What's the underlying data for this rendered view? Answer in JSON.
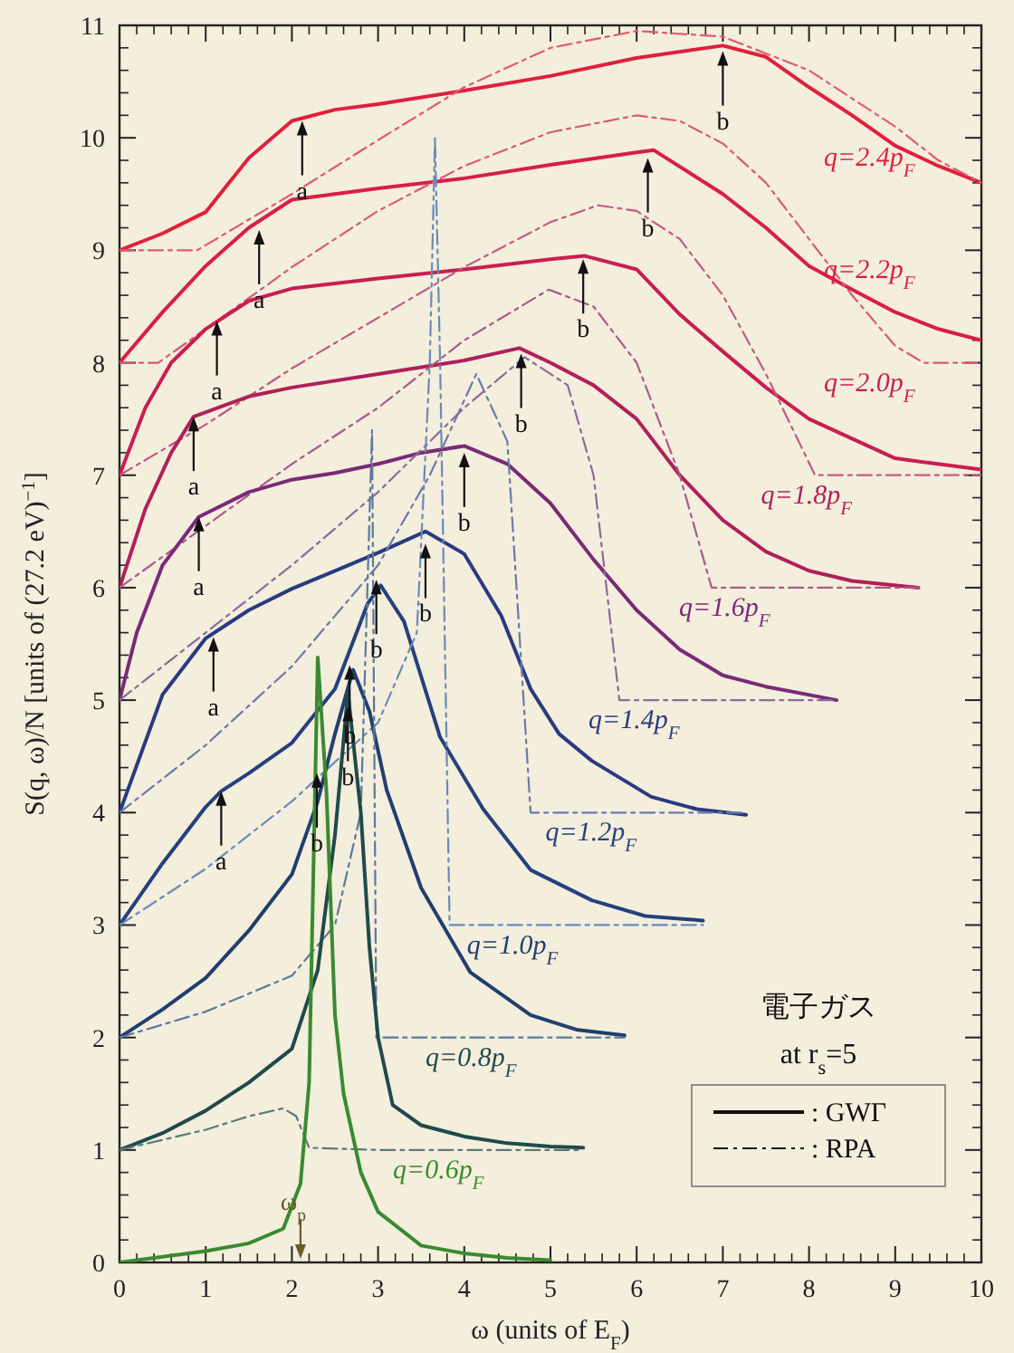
{
  "chart_data": {
    "type": "line",
    "xlabel": "ω (units of E$_{F}$)",
    "ylabel": "S(q, ω)/N   [units of (27.2 eV)$^{−1}$]",
    "xlim": [
      0,
      10
    ],
    "ylim": [
      0,
      11
    ],
    "xticks": [
      0,
      1,
      2,
      3,
      4,
      5,
      6,
      7,
      8,
      9,
      10
    ],
    "yticks": [
      0,
      1,
      2,
      3,
      4,
      5,
      6,
      7,
      8,
      9,
      10,
      11
    ],
    "legend": "bottom right",
    "series": [
      {
        "name": "q=2.4p$_{F}$",
        "color": "#e0203c",
        "line_style": "solid",
        "x": [
          0,
          0.5,
          1,
          1.5,
          2,
          2.5,
          3,
          4,
          5,
          6,
          7,
          7.5,
          8,
          8.5,
          9,
          9.5,
          10
        ],
        "values": [
          9.0,
          9.15,
          9.34,
          9.82,
          10.15,
          10.25,
          10.3,
          10.42,
          10.55,
          10.71,
          10.82,
          10.72,
          10.45,
          10.2,
          9.93,
          9.75,
          9.6
        ]
      },
      {
        "color": "#e05a70",
        "line_style": "dashed",
        "x": [
          0,
          0.9,
          2,
          3,
          4,
          5,
          6,
          7,
          8,
          9,
          9.5,
          10
        ],
        "values": [
          9,
          9,
          9.5,
          9.98,
          10.45,
          10.8,
          10.95,
          10.9,
          10.6,
          10.1,
          9.8,
          9.6
        ]
      },
      {
        "name": "q=2.2p$_{F}$",
        "color": "#d81e48",
        "line_style": "solid",
        "x": [
          0,
          0.5,
          1,
          1.5,
          2,
          3,
          4,
          5,
          6,
          6.2,
          7,
          7.5,
          8,
          8.5,
          9,
          9.5,
          10
        ],
        "values": [
          8,
          8.45,
          8.86,
          9.2,
          9.45,
          9.55,
          9.64,
          9.76,
          9.87,
          9.89,
          9.5,
          9.2,
          8.86,
          8.65,
          8.45,
          8.3,
          8.2
        ]
      },
      {
        "color": "#d85a78",
        "line_style": "dashed",
        "x": [
          0,
          0.45,
          1,
          2,
          3,
          4,
          5,
          6,
          6.5,
          7,
          7.5,
          8,
          8.5,
          9,
          9.33,
          10
        ],
        "values": [
          8,
          8,
          8.3,
          8.85,
          9.35,
          9.75,
          10.05,
          10.2,
          10.15,
          9.95,
          9.6,
          9.1,
          8.6,
          8.15,
          8,
          8
        ]
      },
      {
        "name": "q=2.0p$_{F}$",
        "color": "#c81e50",
        "line_style": "solid",
        "x": [
          0,
          0.3,
          0.6,
          1,
          1.5,
          2,
          3,
          4,
          5,
          5.4,
          6,
          6.5,
          7,
          7.5,
          8,
          9,
          10
        ],
        "values": [
          7,
          7.6,
          8.0,
          8.3,
          8.55,
          8.66,
          8.75,
          8.83,
          8.92,
          8.95,
          8.83,
          8.43,
          8.1,
          7.78,
          7.5,
          7.15,
          7.05
        ]
      },
      {
        "color": "#c05a80",
        "line_style": "dashed",
        "x": [
          0,
          1,
          2,
          3,
          4,
          5,
          5.55,
          6,
          6.5,
          7,
          7.5,
          8.07,
          10
        ],
        "values": [
          7,
          7.45,
          7.95,
          8.4,
          8.85,
          9.25,
          9.4,
          9.35,
          9.1,
          8.6,
          7.9,
          7,
          7
        ]
      },
      {
        "name": "q=1.8p$_{F}$",
        "color": "#b0205a",
        "line_style": "solid",
        "x": [
          0,
          0.3,
          0.6,
          0.86,
          1.5,
          2,
          3,
          4,
          4.64,
          5,
          5.5,
          6,
          6.5,
          7,
          7.5,
          8,
          8.5,
          9.27
        ],
        "values": [
          6,
          6.7,
          7.2,
          7.52,
          7.7,
          7.78,
          7.9,
          8.02,
          8.13,
          8.0,
          7.8,
          7.5,
          7.0,
          6.6,
          6.32,
          6.15,
          6.06,
          6.0
        ]
      },
      {
        "color": "#a85a88",
        "line_style": "dashed",
        "x": [
          0,
          1,
          2,
          3,
          4,
          4.98,
          5.5,
          6,
          6.5,
          6.87,
          9.27
        ],
        "values": [
          6,
          6.55,
          7.1,
          7.6,
          8.2,
          8.65,
          8.5,
          8.0,
          7.0,
          6.0,
          6.0
        ]
      },
      {
        "name": "q=1.6p$_{F}$",
        "color": "#7a2a78",
        "line_style": "solid",
        "x": [
          0,
          0.2,
          0.5,
          0.92,
          1.5,
          2,
          2.5,
          3,
          3.5,
          4,
          4.5,
          5,
          5.5,
          6,
          6.5,
          7,
          7.5,
          8.32
        ],
        "values": [
          5,
          5.6,
          6.2,
          6.63,
          6.85,
          6.96,
          7.02,
          7.1,
          7.2,
          7.26,
          7.1,
          6.75,
          6.25,
          5.8,
          5.45,
          5.22,
          5.12,
          5.0
        ]
      },
      {
        "color": "#8a6a98",
        "line_style": "dashed",
        "x": [
          0,
          1,
          2,
          3,
          4,
          4.7,
          5.2,
          5.5,
          5.8,
          8.32
        ],
        "values": [
          5,
          5.6,
          6.2,
          6.85,
          7.6,
          8.05,
          7.8,
          7.0,
          5.0,
          5.0
        ]
      },
      {
        "name": "q=1.4p$_{F}$",
        "color": "#2a3a80",
        "line_style": "solid",
        "x": [
          0,
          0.5,
          1,
          1.5,
          2,
          2.5,
          3,
          3.55,
          4,
          4.43,
          4.77,
          5.1,
          5.48,
          6.17,
          6.7,
          7.27
        ],
        "values": [
          4,
          5.05,
          5.55,
          5.8,
          5.99,
          6.15,
          6.31,
          6.5,
          6.3,
          5.75,
          5.1,
          4.7,
          4.46,
          4.14,
          4.03,
          3.98
        ]
      },
      {
        "color": "#6a7aa8",
        "line_style": "dashed",
        "x": [
          0,
          1,
          2,
          3,
          3.6,
          4.14,
          4.5,
          4.77,
          7.27
        ],
        "values": [
          4,
          4.6,
          5.3,
          6.2,
          7.0,
          7.9,
          7.3,
          4.0,
          4.0
        ]
      },
      {
        "name": "q=1.2p$_{F}$",
        "color": "#25407e",
        "line_style": "solid",
        "x": [
          0,
          0.5,
          1,
          1.18,
          1.5,
          2,
          2.5,
          2.88,
          3.03,
          3.3,
          3.72,
          4.22,
          4.77,
          5.48,
          6.1,
          6.77
        ],
        "values": [
          3,
          3.55,
          4.05,
          4.19,
          4.35,
          4.62,
          5.1,
          5.86,
          6.02,
          5.7,
          4.67,
          4.03,
          3.49,
          3.22,
          3.08,
          3.04
        ]
      },
      {
        "color": "#6a8ab8",
        "line_style": "dashed",
        "x": [
          0,
          1,
          2,
          3,
          3.45,
          3.6,
          3.66,
          3.72,
          3.83,
          6.77
        ],
        "values": [
          3,
          3.5,
          4.1,
          4.8,
          5.6,
          8.0,
          10.0,
          8.0,
          3.0,
          3.0
        ]
      },
      {
        "name": "q=1.0p$_{F}$",
        "color": "#203f6e",
        "line_style": "solid",
        "x": [
          0,
          0.5,
          1,
          1.5,
          2,
          2.3,
          2.5,
          2.71,
          2.9,
          3.1,
          3.5,
          4.07,
          4.77,
          5.3,
          5.86
        ],
        "values": [
          2,
          2.25,
          2.53,
          2.95,
          3.45,
          4.1,
          4.7,
          5.27,
          4.9,
          4.2,
          3.33,
          2.58,
          2.2,
          2.07,
          2.02
        ]
      },
      {
        "color": "#5a7a98",
        "line_style": "dashed",
        "x": [
          0,
          1,
          2,
          2.5,
          2.8,
          2.93,
          2.98,
          5.86
        ],
        "values": [
          2,
          2.23,
          2.55,
          3.0,
          4.0,
          7.4,
          2.0,
          2.0
        ]
      },
      {
        "name": "q=0.8p$_{F}$",
        "color": "#1f4a4a",
        "line_style": "solid",
        "x": [
          0,
          0.5,
          1,
          1.5,
          2,
          2.3,
          2.5,
          2.65,
          2.8,
          2.9,
          3.0,
          3.17,
          3.5,
          4,
          4.5,
          5,
          5.38
        ],
        "values": [
          1,
          1.15,
          1.35,
          1.6,
          1.9,
          2.6,
          3.8,
          5.07,
          4.0,
          2.8,
          2.0,
          1.4,
          1.22,
          1.12,
          1.06,
          1.03,
          1.02
        ]
      },
      {
        "color": "#5a7a78",
        "line_style": "dashed",
        "x": [
          0,
          1,
          1.5,
          1.9,
          2.05,
          2.2,
          3,
          5.38
        ],
        "values": [
          1,
          1.18,
          1.3,
          1.37,
          1.3,
          1.02,
          1.0,
          1.0
        ]
      },
      {
        "name": "q=0.6p$_{F}$",
        "color": "#3a8a30",
        "line_style": "solid",
        "x": [
          0,
          0.5,
          1,
          1.5,
          1.9,
          2.1,
          2.2,
          2.25,
          2.3,
          2.4,
          2.5,
          2.6,
          2.8,
          3,
          3.5,
          4,
          4.5,
          5
        ],
        "values": [
          0,
          0.05,
          0.1,
          0.17,
          0.3,
          0.7,
          1.6,
          3.5,
          5.38,
          4.2,
          2.2,
          1.5,
          0.8,
          0.45,
          0.15,
          0.08,
          0.04,
          0.02
        ]
      }
    ],
    "annotations": [
      {
        "text": "a",
        "x": 2.12,
        "y": 10.15
      },
      {
        "text": "a",
        "x": 1.62,
        "y": 9.18
      },
      {
        "text": "a",
        "x": 1.13,
        "y": 8.37
      },
      {
        "text": "a",
        "x": 0.86,
        "y": 7.52
      },
      {
        "text": "a",
        "x": 0.92,
        "y": 6.63
      },
      {
        "text": "a",
        "x": 1.09,
        "y": 5.56
      },
      {
        "text": "a",
        "x": 1.18,
        "y": 4.19
      },
      {
        "text": "b",
        "x": 7.0,
        "y": 10.77
      },
      {
        "text": "b",
        "x": 6.13,
        "y": 9.82
      },
      {
        "text": "b",
        "x": 5.38,
        "y": 8.92
      },
      {
        "text": "b",
        "x": 4.66,
        "y": 8.08
      },
      {
        "text": "b",
        "x": 4.0,
        "y": 7.2
      },
      {
        "text": "b",
        "x": 3.55,
        "y": 6.39
      },
      {
        "text": "b",
        "x": 2.98,
        "y": 6.07
      },
      {
        "text": "b",
        "x": 2.67,
        "y": 5.31
      },
      {
        "text": "b",
        "x": 2.65,
        "y": 4.94
      },
      {
        "text": "b",
        "x": 2.29,
        "y": 4.35
      },
      {
        "text": "ω$_{p}$",
        "x": 2.1
      },
      "電子ガス",
      "at r$_{s}$=5",
      ": GWΓ",
      ": RPA"
    ]
  }
}
